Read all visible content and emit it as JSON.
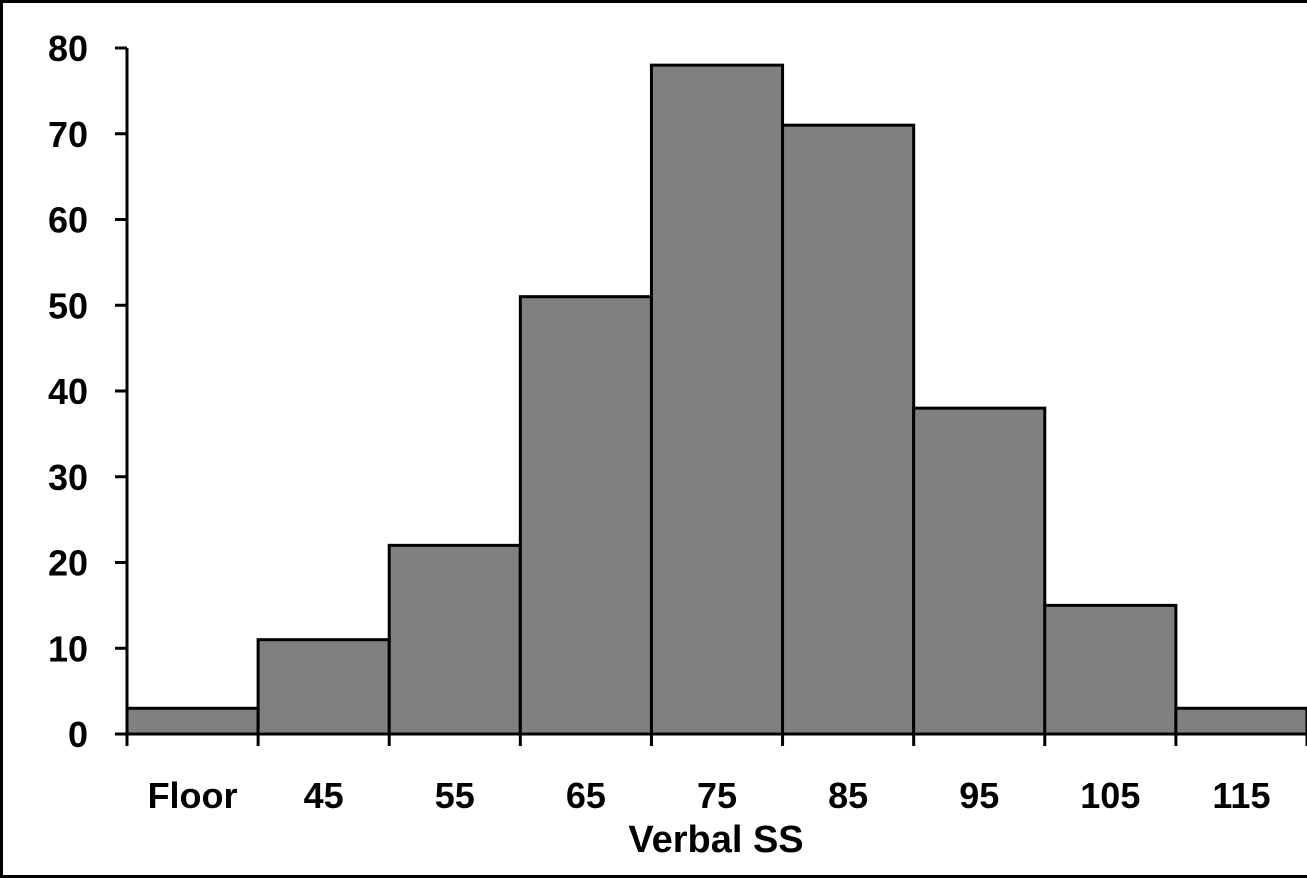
{
  "chart_data": {
    "type": "bar",
    "title": "",
    "xlabel": "Verbal SS",
    "ylabel": "",
    "categories": [
      "Floor",
      "45",
      "55",
      "65",
      "75",
      "85",
      "95",
      "105",
      "115"
    ],
    "values": [
      3,
      11,
      22,
      51,
      78,
      71,
      38,
      15,
      3
    ],
    "ylim": [
      0,
      80
    ],
    "yticks": [
      0,
      10,
      20,
      30,
      40,
      50,
      60,
      70,
      80
    ],
    "grid": false,
    "legend": "none",
    "bar_color": "#808080",
    "edge_color": "#000000"
  }
}
